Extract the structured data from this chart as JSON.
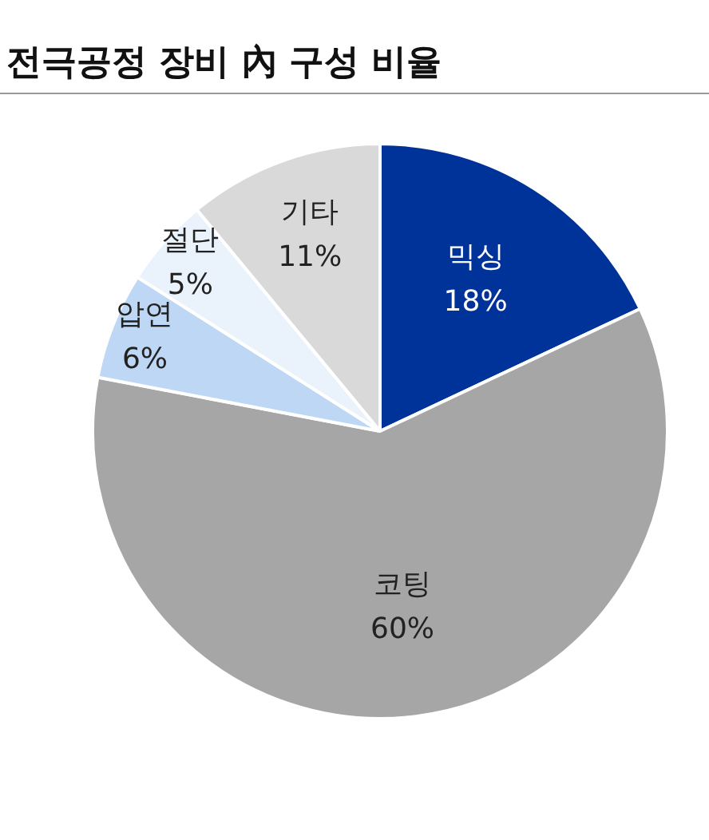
{
  "chart_data": {
    "type": "pie",
    "title": "전극공정 장비 內 구성 비율",
    "categories": [
      "믹싱",
      "코팅",
      "압연",
      "절단",
      "기타"
    ],
    "values": [
      18,
      60,
      6,
      5,
      11
    ],
    "value_labels": [
      "18%",
      "60%",
      "6%",
      "5%",
      "11%"
    ],
    "colors": [
      "#003399",
      "#a6a6a6",
      "#bdd7f5",
      "#eaf3fc",
      "#d9d9d9"
    ],
    "legend": false
  }
}
